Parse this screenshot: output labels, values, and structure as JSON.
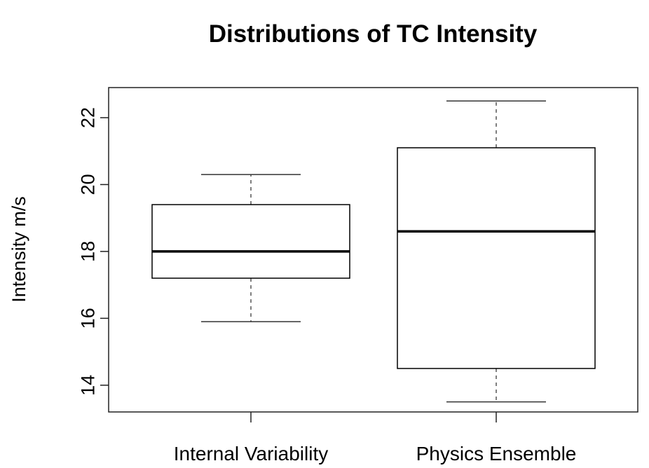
{
  "chart_data": {
    "type": "boxplot",
    "title": "Distributions of TC Intensity",
    "xlabel": "",
    "ylabel": "Intensity m/s",
    "ylim": [
      13.2,
      22.9
    ],
    "yticks": [
      14,
      16,
      18,
      20,
      22
    ],
    "categories": [
      "Internal Variability",
      "Physics Ensemble"
    ],
    "boxes": [
      {
        "category": "Internal Variability",
        "whisker_low": 15.9,
        "q1": 17.2,
        "median": 18.0,
        "q3": 19.4,
        "whisker_high": 20.3
      },
      {
        "category": "Physics Ensemble",
        "whisker_low": 13.5,
        "q1": 14.5,
        "median": 18.6,
        "q3": 21.1,
        "whisker_high": 22.5
      }
    ],
    "grid": false,
    "colors": {
      "box_fill": "#ffffff",
      "stroke": "#000000",
      "median": "#000000",
      "whisker": "#555555"
    }
  }
}
